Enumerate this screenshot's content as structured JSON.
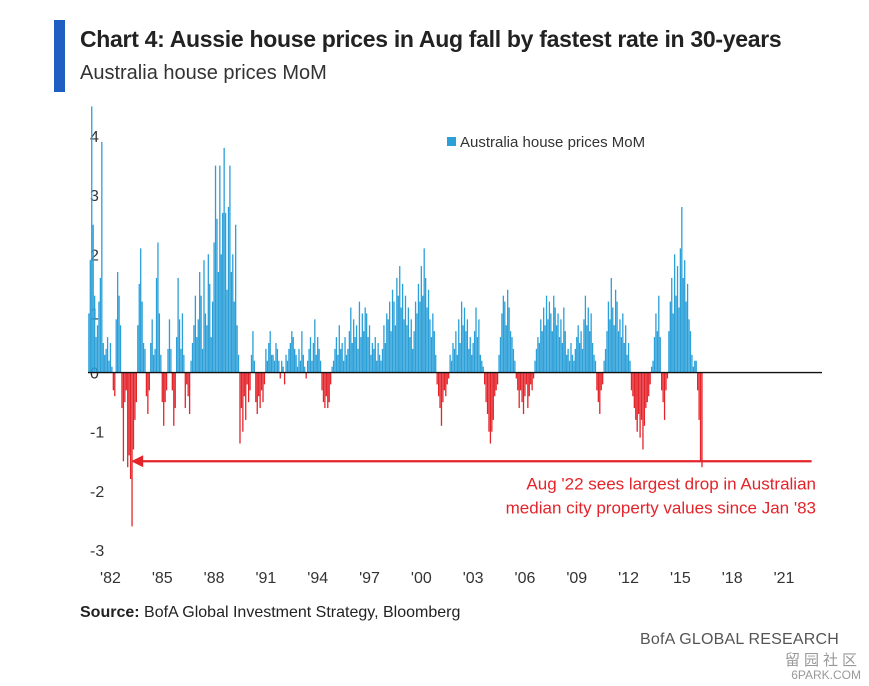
{
  "header": {
    "title": "Chart 4: Aussie house prices in Aug fall by fastest rate in 30-years",
    "subtitle": "Australia house prices MoM"
  },
  "footer": {
    "source_label": "Source:",
    "source_text": "BofA Global Investment Strategy, Bloomberg",
    "brand": "BofA GLOBAL RESEARCH"
  },
  "watermark": {
    "line1": "留园社区",
    "line2": "6PARK.COM"
  },
  "colors": {
    "positive": "#2a9fd8",
    "negative": "#e3242b",
    "annotation": "#e3242b",
    "accent_bar": "#1f5fc2"
  },
  "chart_data": {
    "type": "bar",
    "ylim": [
      -3,
      4
    ],
    "y_ticks": [
      -3,
      -2,
      -1,
      0,
      1,
      2,
      3,
      4
    ],
    "x_tick_labels": [
      "'82",
      "'85",
      "'88",
      "'91",
      "'94",
      "'97",
      "'00",
      "'03",
      "'06",
      "'09",
      "'12",
      "'15",
      "'18",
      "'21"
    ],
    "x_tick_years": [
      1982,
      1985,
      1988,
      1991,
      1994,
      1997,
      2000,
      2003,
      2006,
      2009,
      2012,
      2015,
      2018,
      2021
    ],
    "x_range": [
      1980.7,
      2023.2
    ],
    "legend": {
      "label": "Australia house prices MoM",
      "position": "top-center"
    },
    "annotation": {
      "text_line1": "Aug '22 sees largest drop in Australian",
      "text_line2": "median city property values since Jan '83",
      "arrow_from_year": 2022.6,
      "arrow_to_year": 1983.2,
      "arrow_y": -1.5
    },
    "series": [
      {
        "frequency": "monthly",
        "start": "1980-10",
        "values": [
          1.0,
          1.9,
          4.5,
          2.5,
          1.3,
          0.6,
          0.8,
          1.2,
          1.6,
          3.9,
          0.5,
          0.3,
          0.4,
          0.6,
          0.2,
          0.5,
          0.1,
          -0.3,
          -0.4,
          0.9,
          1.7,
          1.3,
          0.8,
          -0.6,
          -1.5,
          -0.5,
          -0.3,
          -1.6,
          -1.4,
          -1.8,
          -2.6,
          -1.3,
          -0.8,
          -0.5,
          0.8,
          1.5,
          2.1,
          1.2,
          0.5,
          0.4,
          -0.4,
          -0.7,
          -0.3,
          0.5,
          0.9,
          0.3,
          0.4,
          1.6,
          2.2,
          1.0,
          0.3,
          -0.5,
          -0.9,
          -0.5,
          -0.3,
          0.4,
          0.9,
          0.4,
          -0.3,
          -0.9,
          -0.6,
          0.6,
          1.6,
          0.9,
          0.4,
          1.0,
          0.3,
          -0.6,
          -0.2,
          -0.4,
          -0.7,
          0.2,
          0.5,
          0.8,
          1.3,
          0.6,
          0.9,
          1.7,
          1.3,
          0.4,
          1.9,
          1.0,
          0.8,
          2.0,
          1.5,
          0.6,
          1.2,
          2.2,
          3.5,
          2.6,
          1.7,
          3.5,
          2.0,
          2.7,
          3.8,
          2.7,
          1.4,
          2.8,
          3.5,
          1.7,
          2.0,
          1.2,
          2.5,
          0.8,
          0.3,
          -1.2,
          -0.6,
          -1.0,
          -0.4,
          -0.8,
          -0.2,
          -0.5,
          -0.3,
          0.3,
          0.7,
          0.2,
          -0.5,
          -0.7,
          -0.4,
          -0.6,
          -0.3,
          -0.5,
          -0.2,
          0.4,
          0.2,
          0.5,
          0.7,
          0.3,
          0.3,
          0.2,
          0.5,
          0.4,
          0.2,
          -0.1,
          0.2,
          0.1,
          -0.2,
          0.3,
          0.2,
          0.4,
          0.5,
          0.7,
          0.6,
          0.4,
          0.3,
          0.1,
          0.4,
          0.2,
          0.7,
          0.3,
          0.1,
          -0.1,
          0.2,
          0.4,
          0.6,
          0.2,
          0.5,
          0.9,
          0.3,
          0.6,
          0.4,
          0.2,
          -0.3,
          -0.5,
          -0.6,
          -0.4,
          -0.6,
          -0.5,
          -0.2,
          0.1,
          0.2,
          0.4,
          0.6,
          0.3,
          0.8,
          0.4,
          0.5,
          0.2,
          0.6,
          0.3,
          0.4,
          0.7,
          1.1,
          0.5,
          0.9,
          0.6,
          0.8,
          0.4,
          1.2,
          0.6,
          1.0,
          0.7,
          1.1,
          1.0,
          0.6,
          0.8,
          0.3,
          0.5,
          0.4,
          0.6,
          0.2,
          0.5,
          0.3,
          0.2,
          0.4,
          0.8,
          0.5,
          1.0,
          0.9,
          1.2,
          0.7,
          1.4,
          1.2,
          0.8,
          1.6,
          1.3,
          1.8,
          1.1,
          1.5,
          0.9,
          1.3,
          0.8,
          1.1,
          0.6,
          0.9,
          0.4,
          0.7,
          1.2,
          1.0,
          1.5,
          1.2,
          1.8,
          1.3,
          2.1,
          1.6,
          1.1,
          1.4,
          0.9,
          0.6,
          1.0,
          0.7,
          0.3,
          -0.2,
          -0.4,
          -0.6,
          -0.9,
          -0.5,
          -0.3,
          -0.4,
          -0.2,
          -0.1,
          0.3,
          0.2,
          0.5,
          0.4,
          0.7,
          0.3,
          0.9,
          0.5,
          1.2,
          0.8,
          1.1,
          0.7,
          0.9,
          0.4,
          0.6,
          0.3,
          0.5,
          0.7,
          1.1,
          0.6,
          0.9,
          0.3,
          0.2,
          0.1,
          -0.2,
          -0.5,
          -0.7,
          -1.0,
          -1.2,
          -1.0,
          -0.8,
          -0.4,
          -0.3,
          -0.2,
          0.3,
          0.6,
          1.0,
          1.3,
          1.2,
          0.8,
          1.4,
          1.1,
          0.7,
          0.6,
          0.4,
          0.2,
          -0.1,
          -0.3,
          -0.6,
          -0.3,
          -0.5,
          -0.7,
          -0.4,
          -0.2,
          -0.6,
          -0.4,
          -0.2,
          -0.3,
          -0.1,
          0.2,
          0.4,
          0.6,
          0.5,
          0.9,
          0.7,
          1.1,
          0.8,
          1.3,
          0.9,
          1.2,
          1.0,
          0.7,
          1.3,
          1.1,
          0.8,
          1.0,
          0.6,
          0.9,
          0.5,
          1.1,
          0.7,
          0.3,
          0.4,
          0.2,
          0.5,
          0.3,
          0.2,
          0.4,
          0.6,
          0.8,
          0.5,
          0.7,
          0.4,
          0.9,
          1.3,
          0.8,
          1.1,
          0.7,
          1.0,
          0.5,
          0.3,
          0.2,
          -0.3,
          -0.5,
          -0.7,
          -0.3,
          -0.2,
          0.2,
          0.4,
          0.7,
          1.2,
          0.9,
          1.6,
          1.1,
          0.8,
          1.4,
          1.2,
          0.7,
          0.9,
          0.6,
          1.0,
          0.5,
          0.8,
          0.3,
          0.5,
          0.2,
          -0.3,
          -0.4,
          -0.6,
          -0.8,
          -1.0,
          -0.7,
          -1.1,
          -0.8,
          -1.3,
          -0.9,
          -0.6,
          -0.5,
          -0.4,
          -0.2,
          0.1,
          0.2,
          0.6,
          1.0,
          0.7,
          1.3,
          0.6,
          -0.3,
          -0.5,
          -0.8,
          -0.3,
          -0.1,
          0.7,
          1.2,
          1.6,
          1.0,
          2.0,
          1.3,
          1.8,
          1.1,
          2.1,
          2.8,
          1.6,
          1.9,
          1.2,
          1.5,
          0.9,
          0.7,
          0.3,
          0.1,
          0.2,
          0.2,
          -0.3,
          -0.8,
          -1.5,
          -1.6
        ]
      }
    ]
  }
}
